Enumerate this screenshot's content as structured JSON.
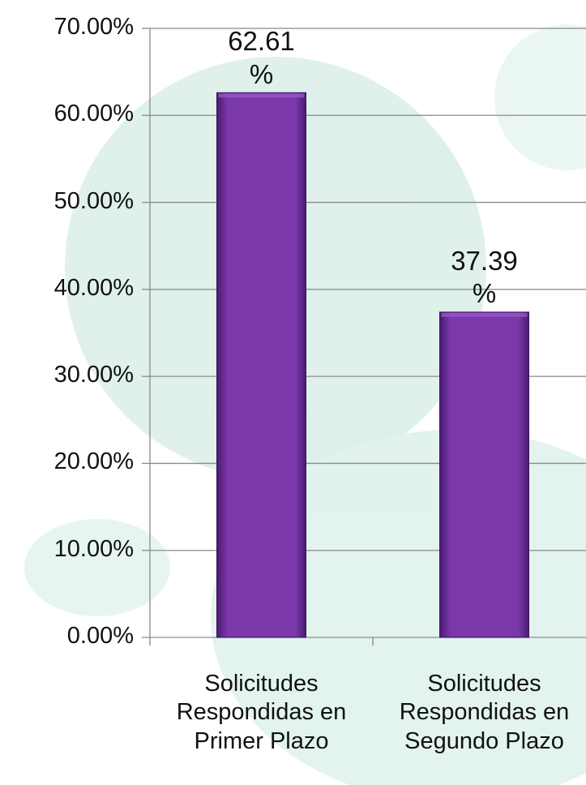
{
  "chart_data": {
    "type": "bar",
    "categories": [
      "Solicitudes Respondidas en Primer Plazo",
      "Solicitudes Respondidas en Segundo Plazo"
    ],
    "values": [
      62.61,
      37.39
    ],
    "value_labels": [
      "62.61 %",
      "37.39 %"
    ],
    "color": "#7030a0",
    "ylim": [
      0,
      70
    ],
    "yticks": [
      {
        "value": 0,
        "label": "0.00%"
      },
      {
        "value": 10,
        "label": "10.00%"
      },
      {
        "value": 20,
        "label": "20.00%"
      },
      {
        "value": 30,
        "label": "30.00%"
      },
      {
        "value": 40,
        "label": "40.00%"
      },
      {
        "value": 50,
        "label": "50.00%"
      },
      {
        "value": 60,
        "label": "60.00%"
      },
      {
        "value": 70,
        "label": "70.00%"
      }
    ],
    "grid": true
  }
}
